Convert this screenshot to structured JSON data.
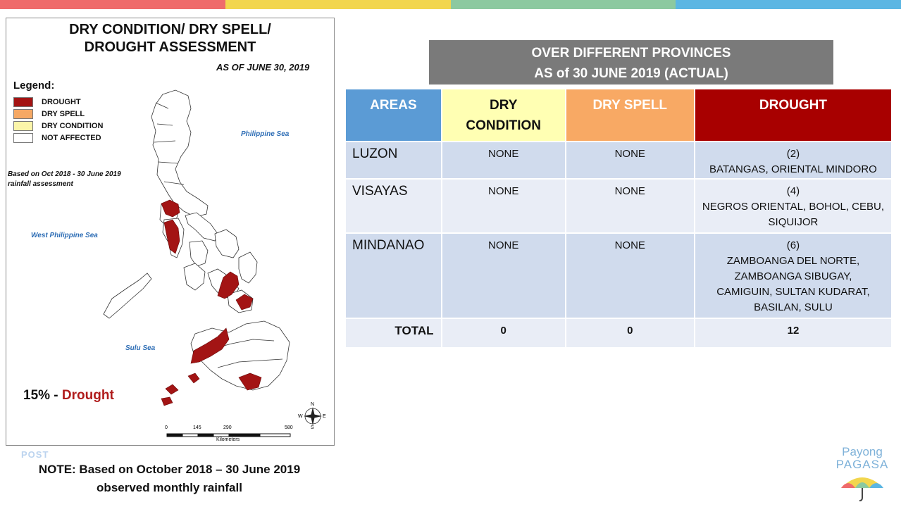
{
  "top_bar": {
    "colors": [
      "#ef6b6b",
      "#f2d64e",
      "#8cc9a0",
      "#5bb6e3"
    ]
  },
  "map": {
    "title_line1": "DRY CONDITION/ DRY SPELL/",
    "title_line2": "DROUGHT ASSESSMENT",
    "as_of": "AS OF  JUNE 30, 2019",
    "legend_title": "Legend:",
    "legend": [
      {
        "label": "DROUGHT",
        "color": "#a31414"
      },
      {
        "label": "DRY SPELL",
        "color": "#f5a864"
      },
      {
        "label": "DRY CONDITION",
        "color": "#fbf5a9"
      },
      {
        "label": "NOT AFFECTED",
        "color": "#ffffff"
      }
    ],
    "basis_line1": "Based on Oct 2018 - 30 June 2019",
    "basis_line2": "rainfall assessment",
    "sea_labels": {
      "philippine_sea": "Philippine Sea",
      "west_philippine_sea": "West Philippine Sea",
      "sulu_sea": "Sulu Sea"
    },
    "percent_value": "15% - ",
    "percent_label": "Drought",
    "scale_ticks": [
      "0",
      "145",
      "290",
      "580"
    ],
    "scale_unit": "Kilometers",
    "compass": {
      "n": "N",
      "s": "S",
      "e": "E",
      "w": "W"
    }
  },
  "post_fragment": "POST",
  "note_line1": "NOTE: Based on October 2018 – 30 June 2019",
  "note_line2": "observed monthly rainfall",
  "table_header": {
    "line1": "OVER DIFFERENT PROVINCES",
    "line2": "AS of 30 JUNE 2019 (ACTUAL)"
  },
  "table": {
    "columns": [
      {
        "label": "AREAS",
        "bg": "#5b9bd5",
        "color": "#ffffff"
      },
      {
        "label_line1": "DRY",
        "label_line2": "CONDITION",
        "bg": "#ffffb3",
        "color": "#111111"
      },
      {
        "label": "DRY SPELL",
        "bg": "#f8a964",
        "color": "#ffffff"
      },
      {
        "label": "DROUGHT",
        "bg": "#a80000",
        "color": "#ffffff"
      }
    ],
    "rows": [
      {
        "area": "LUZON",
        "dry_condition": "NONE",
        "dry_spell": "NONE",
        "drought_count": "(2)",
        "drought_lines": [
          "BATANGAS, ORIENTAL MINDORO"
        ]
      },
      {
        "area": "VISAYAS",
        "dry_condition": "NONE",
        "dry_spell": "NONE",
        "drought_count": "(4)",
        "drought_lines": [
          "NEGROS ORIENTAL, BOHOL, CEBU,",
          "SIQUIJOR"
        ]
      },
      {
        "area": "MINDANAO",
        "dry_condition": "NONE",
        "dry_spell": "NONE",
        "drought_count": "(6)",
        "drought_lines": [
          "ZAMBOANGA DEL NORTE,",
          "ZAMBOANGA SIBUGAY,",
          "CAMIGUIN, SULTAN KUDARAT,",
          "BASILAN, SULU"
        ]
      }
    ],
    "total": {
      "label": "TOTAL",
      "dry_condition": "0",
      "dry_spell": "0",
      "drought": "12"
    }
  },
  "logo": {
    "line1": "Payong",
    "line2": "PAGASA",
    "umbrella_icon": "umbrella-icon"
  }
}
